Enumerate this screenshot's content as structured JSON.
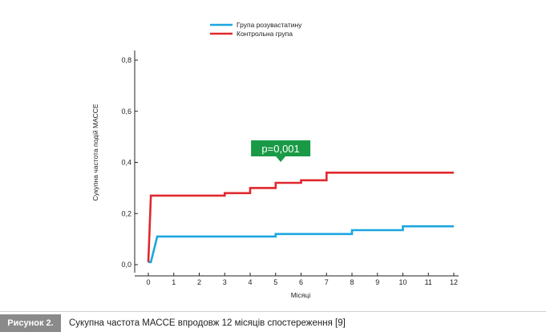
{
  "chart_data": {
    "type": "line",
    "xlabel": "Місяці",
    "ylabel": "Сукупна частота подій МАССЕ",
    "xlim": [
      0,
      12
    ],
    "ylim": [
      0,
      0.8
    ],
    "x_ticks": [
      "0",
      "1",
      "2",
      "3",
      "4",
      "5",
      "6",
      "7",
      "8",
      "9",
      "10",
      "11",
      "12"
    ],
    "y_ticks": [
      {
        "value": 0.0,
        "label": "0,0"
      },
      {
        "value": 0.2,
        "label": "0,2"
      },
      {
        "value": 0.4,
        "label": "0,4"
      },
      {
        "value": 0.6,
        "label": "0,6"
      },
      {
        "value": 0.8,
        "label": "0,8"
      }
    ],
    "grid": false,
    "legend_position": "top",
    "series": [
      {
        "name": "Група розувастатину",
        "color": "#1ba6e0",
        "points": [
          [
            0.0,
            0.01
          ],
          [
            0.1,
            0.01
          ],
          [
            0.35,
            0.11
          ],
          [
            5.0,
            0.11
          ],
          [
            5.0,
            0.12
          ],
          [
            8.0,
            0.12
          ],
          [
            8.0,
            0.135
          ],
          [
            10.0,
            0.135
          ],
          [
            10.0,
            0.15
          ],
          [
            12.0,
            0.15
          ]
        ]
      },
      {
        "name": "Контрольна група",
        "color": "#e0282e",
        "points": [
          [
            0.0,
            0.01
          ],
          [
            0.1,
            0.27
          ],
          [
            3.0,
            0.27
          ],
          [
            3.0,
            0.28
          ],
          [
            4.0,
            0.28
          ],
          [
            4.0,
            0.3
          ],
          [
            5.0,
            0.3
          ],
          [
            5.0,
            0.32
          ],
          [
            6.0,
            0.32
          ],
          [
            6.0,
            0.33
          ],
          [
            7.0,
            0.33
          ],
          [
            7.0,
            0.36
          ],
          [
            12.0,
            0.36
          ]
        ]
      }
    ],
    "annotation": {
      "text": "p=0,001",
      "x": 5.2,
      "y": 0.455,
      "color": "#1a9a46"
    }
  },
  "caption": {
    "label": "Рисунок 2.",
    "text": "Сукупна частота МАССЕ впродовж 12 місяців спостереження [9]"
  }
}
